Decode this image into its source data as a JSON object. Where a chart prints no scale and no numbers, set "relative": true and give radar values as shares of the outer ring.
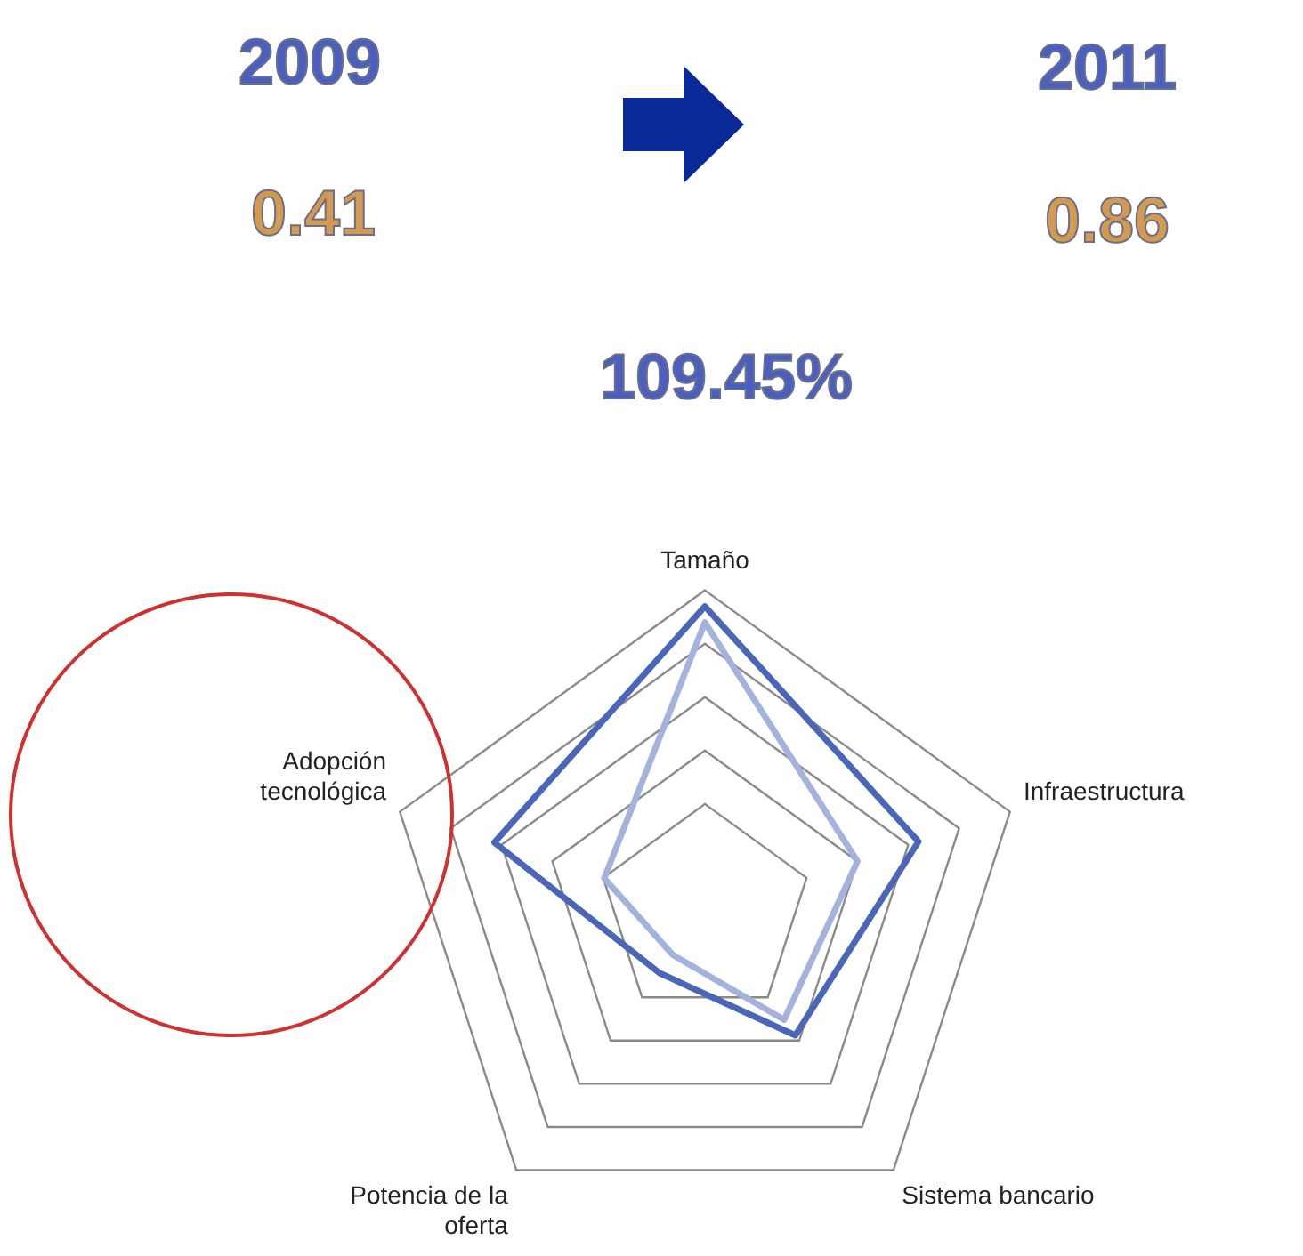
{
  "chart_data": {
    "type": "radar",
    "relative": true,
    "legend": false,
    "marker": "none",
    "categories": [
      "Tamaño",
      "Infraestructura",
      "Sistema bancario",
      "Potencia de la oferta",
      "Adopción tecnológica"
    ],
    "series": [
      {
        "color": "#4a66b8",
        "values": [
          0.95,
          0.7,
          0.48,
          0.24,
          0.69
        ]
      },
      {
        "color": "#a3b3de",
        "values": [
          0.9,
          0.5,
          0.42,
          0.17,
          0.33
        ]
      }
    ],
    "annotations": [
      "2009",
      "2011",
      "0.41",
      "0.86",
      "109.45%"
    ]
  }
}
